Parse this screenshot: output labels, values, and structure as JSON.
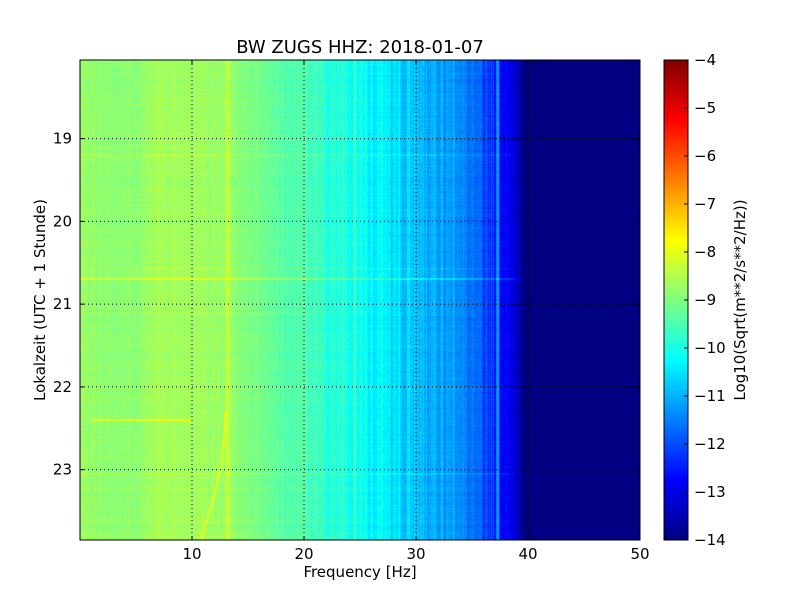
{
  "chart_data": {
    "type": "heatmap",
    "title": "BW ZUGS HHZ: 2018-01-07",
    "xlabel": "Frequency [Hz]",
    "ylabel": "Lokalzeit (UTC + 1 Stunde)",
    "xlim": [
      0,
      50
    ],
    "ylim": [
      18.05,
      23.85
    ],
    "y_inverted": true,
    "x_ticks": [
      10,
      20,
      30,
      40,
      50
    ],
    "y_ticks": [
      19,
      20,
      21,
      22,
      23
    ],
    "grid": true,
    "colorbar": {
      "label": "Log10(Sqrt(m**2/s**2/Hz))",
      "range": [
        -14,
        -4
      ],
      "ticks": [
        -14,
        -13,
        -12,
        -11,
        -10,
        -9,
        -8,
        -7,
        -6,
        -5,
        -4
      ],
      "colormap": "jet"
    },
    "spectral_profile": {
      "frequency_hz": [
        0,
        2,
        5,
        7,
        10,
        13,
        15,
        18,
        20,
        22,
        25,
        28,
        30,
        33,
        35,
        37,
        38,
        39,
        40,
        50
      ],
      "log10_psd": [
        -8.7,
        -8.9,
        -8.9,
        -8.6,
        -8.7,
        -8.7,
        -9.0,
        -9.4,
        -9.5,
        -9.8,
        -10.1,
        -10.6,
        -10.8,
        -11.3,
        -11.6,
        -12.3,
        -12.8,
        -13.4,
        -14.0,
        -14.0
      ]
    },
    "features": [
      {
        "type": "horizontal-line",
        "time": 20.7,
        "delta_log10": 0.6
      },
      {
        "type": "horizontal-line",
        "time": 20.58,
        "delta_log10": 0.3
      },
      {
        "type": "horizontal-line",
        "time": 19.2,
        "delta_log10": 0.3
      },
      {
        "type": "horizontal-line",
        "time": 23.05,
        "delta_log10": 0.3
      },
      {
        "type": "horizontal-segment",
        "time": 22.4,
        "freq_range": [
          1,
          10
        ],
        "delta_log10": 0.9
      },
      {
        "type": "vertical-line",
        "freq": 37.3,
        "delta_log10": 0.9
      },
      {
        "type": "vertical-line",
        "freq": 24.5,
        "delta_log10": 0.6
      },
      {
        "type": "vertical-line",
        "freq": 13.2,
        "delta_log10": 0.4
      },
      {
        "type": "curve",
        "points": [
          [
            13.0,
            22.3
          ],
          [
            12.7,
            22.9
          ],
          [
            11.8,
            23.4
          ],
          [
            10.8,
            23.85
          ]
        ],
        "delta_log10": 0.6
      }
    ]
  }
}
